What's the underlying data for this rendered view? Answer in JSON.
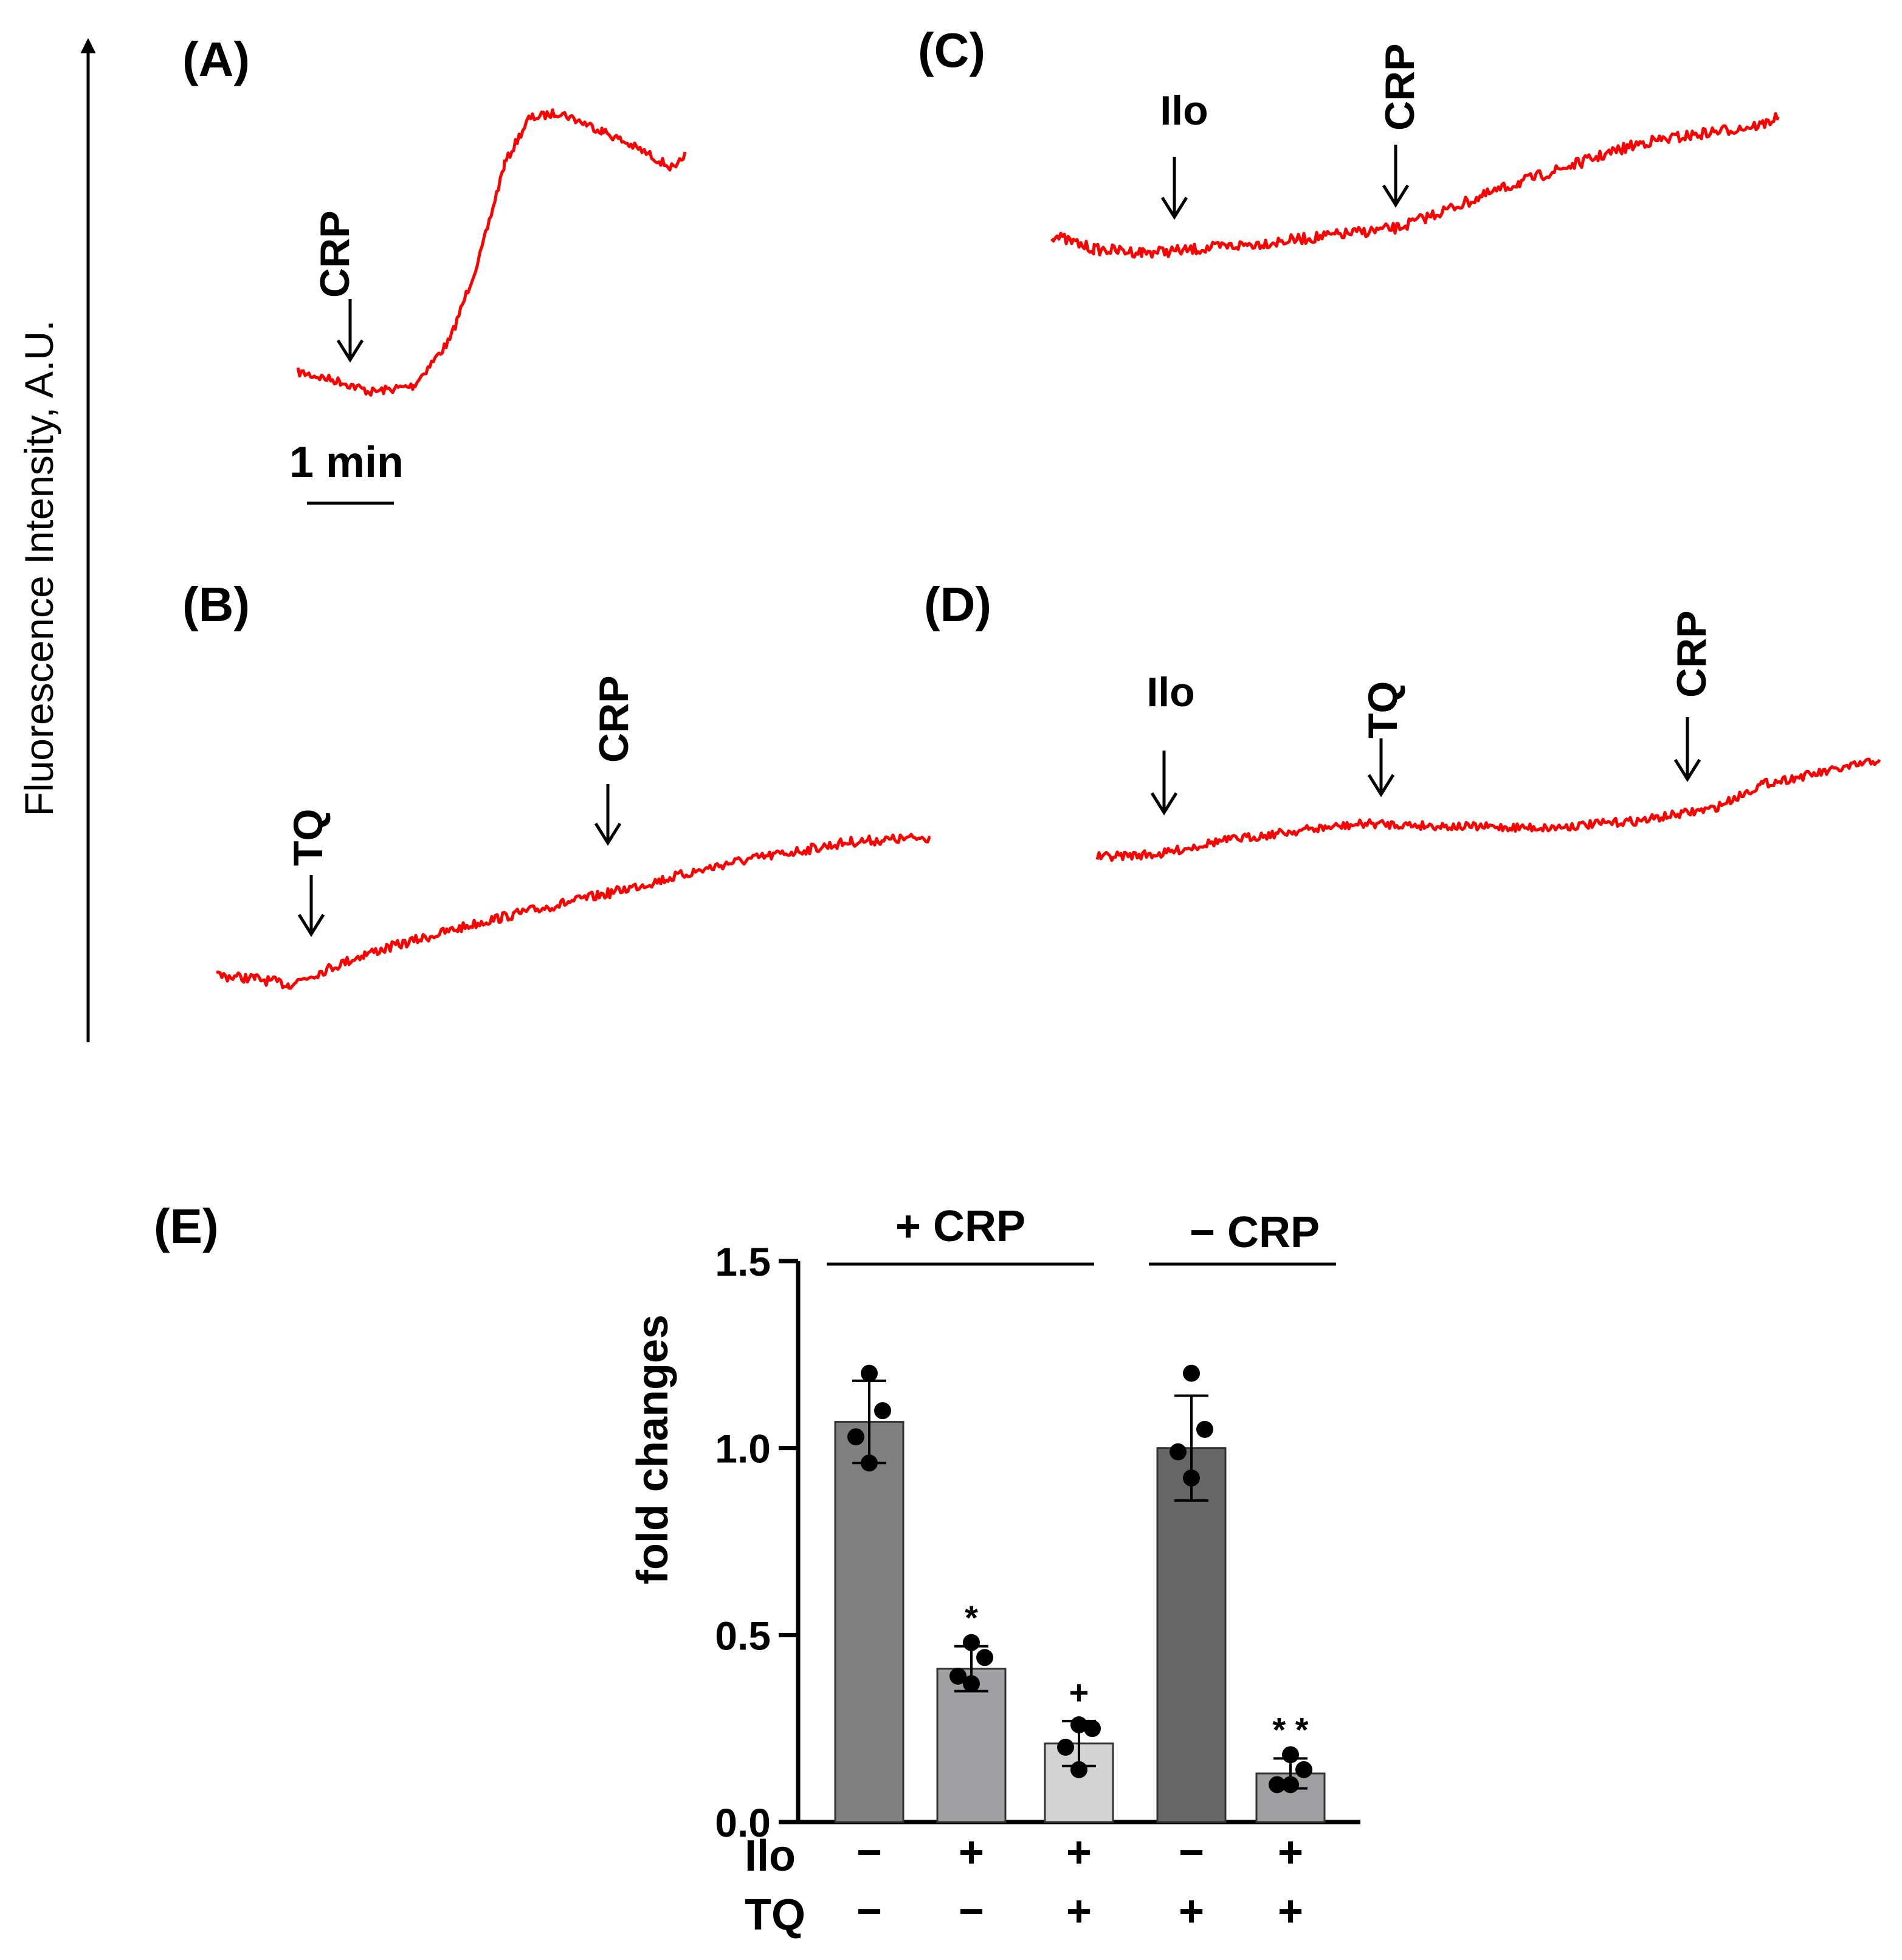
{
  "colors": {
    "trace": "#ff0000",
    "text": "#000000",
    "bar_dark": "#666666",
    "bar_mid": "#808080",
    "bar_light": "#a0a0a3",
    "bar_pale": "#d3d3d3"
  },
  "y_axis_label": "Fluorescence Intensity, A.U.",
  "scale_bar_label": "1 min",
  "panels": {
    "A": {
      "label": "(A)",
      "markers": [
        "CRP"
      ]
    },
    "B": {
      "label": "(B)",
      "markers": [
        "TQ",
        "CRP"
      ]
    },
    "C": {
      "label": "(C)",
      "markers": [
        "Ilo",
        "CRP"
      ]
    },
    "D": {
      "label": "(D)",
      "markers": [
        "Ilo",
        "TQ",
        "CRP"
      ]
    }
  },
  "chart_data": {
    "type": "bar",
    "panel_label": "(E)",
    "title": "",
    "ylabel": "fold changes",
    "xlabel": "",
    "ylim": [
      0,
      1.5
    ],
    "yticks": [
      "0.0",
      "0.5",
      "1.0",
      "1.5"
    ],
    "grid": false,
    "groups": [
      {
        "label": "+ CRP",
        "bars": [
          0,
          1,
          2
        ]
      },
      {
        "label": "− CRP",
        "bars": [
          3,
          4
        ]
      }
    ],
    "conditions": [
      {
        "name": "Ilo",
        "values": [
          "−",
          "+",
          "+",
          "−",
          "+"
        ]
      },
      {
        "name": "TQ",
        "values": [
          "−",
          "−",
          "+",
          "+",
          "+"
        ]
      }
    ],
    "bars": [
      {
        "value": 1.07,
        "error": 0.11,
        "points": [
          1.2,
          1.1,
          1.03,
          0.96
        ],
        "significance": "",
        "color": "#808080"
      },
      {
        "value": 0.41,
        "error": 0.06,
        "points": [
          0.48,
          0.44,
          0.39,
          0.37
        ],
        "significance": "*",
        "color": "#a0a0a3"
      },
      {
        "value": 0.21,
        "error": 0.06,
        "points": [
          0.26,
          0.25,
          0.2,
          0.14
        ],
        "significance": "+",
        "color": "#d3d3d3"
      },
      {
        "value": 1.0,
        "error": 0.14,
        "points": [
          1.2,
          1.05,
          0.99,
          0.92
        ],
        "significance": "",
        "color": "#666666"
      },
      {
        "value": 0.13,
        "error": 0.04,
        "points": [
          0.18,
          0.14,
          0.1,
          0.1
        ],
        "significance": "* *",
        "color": "#a0a0a3"
      }
    ]
  }
}
